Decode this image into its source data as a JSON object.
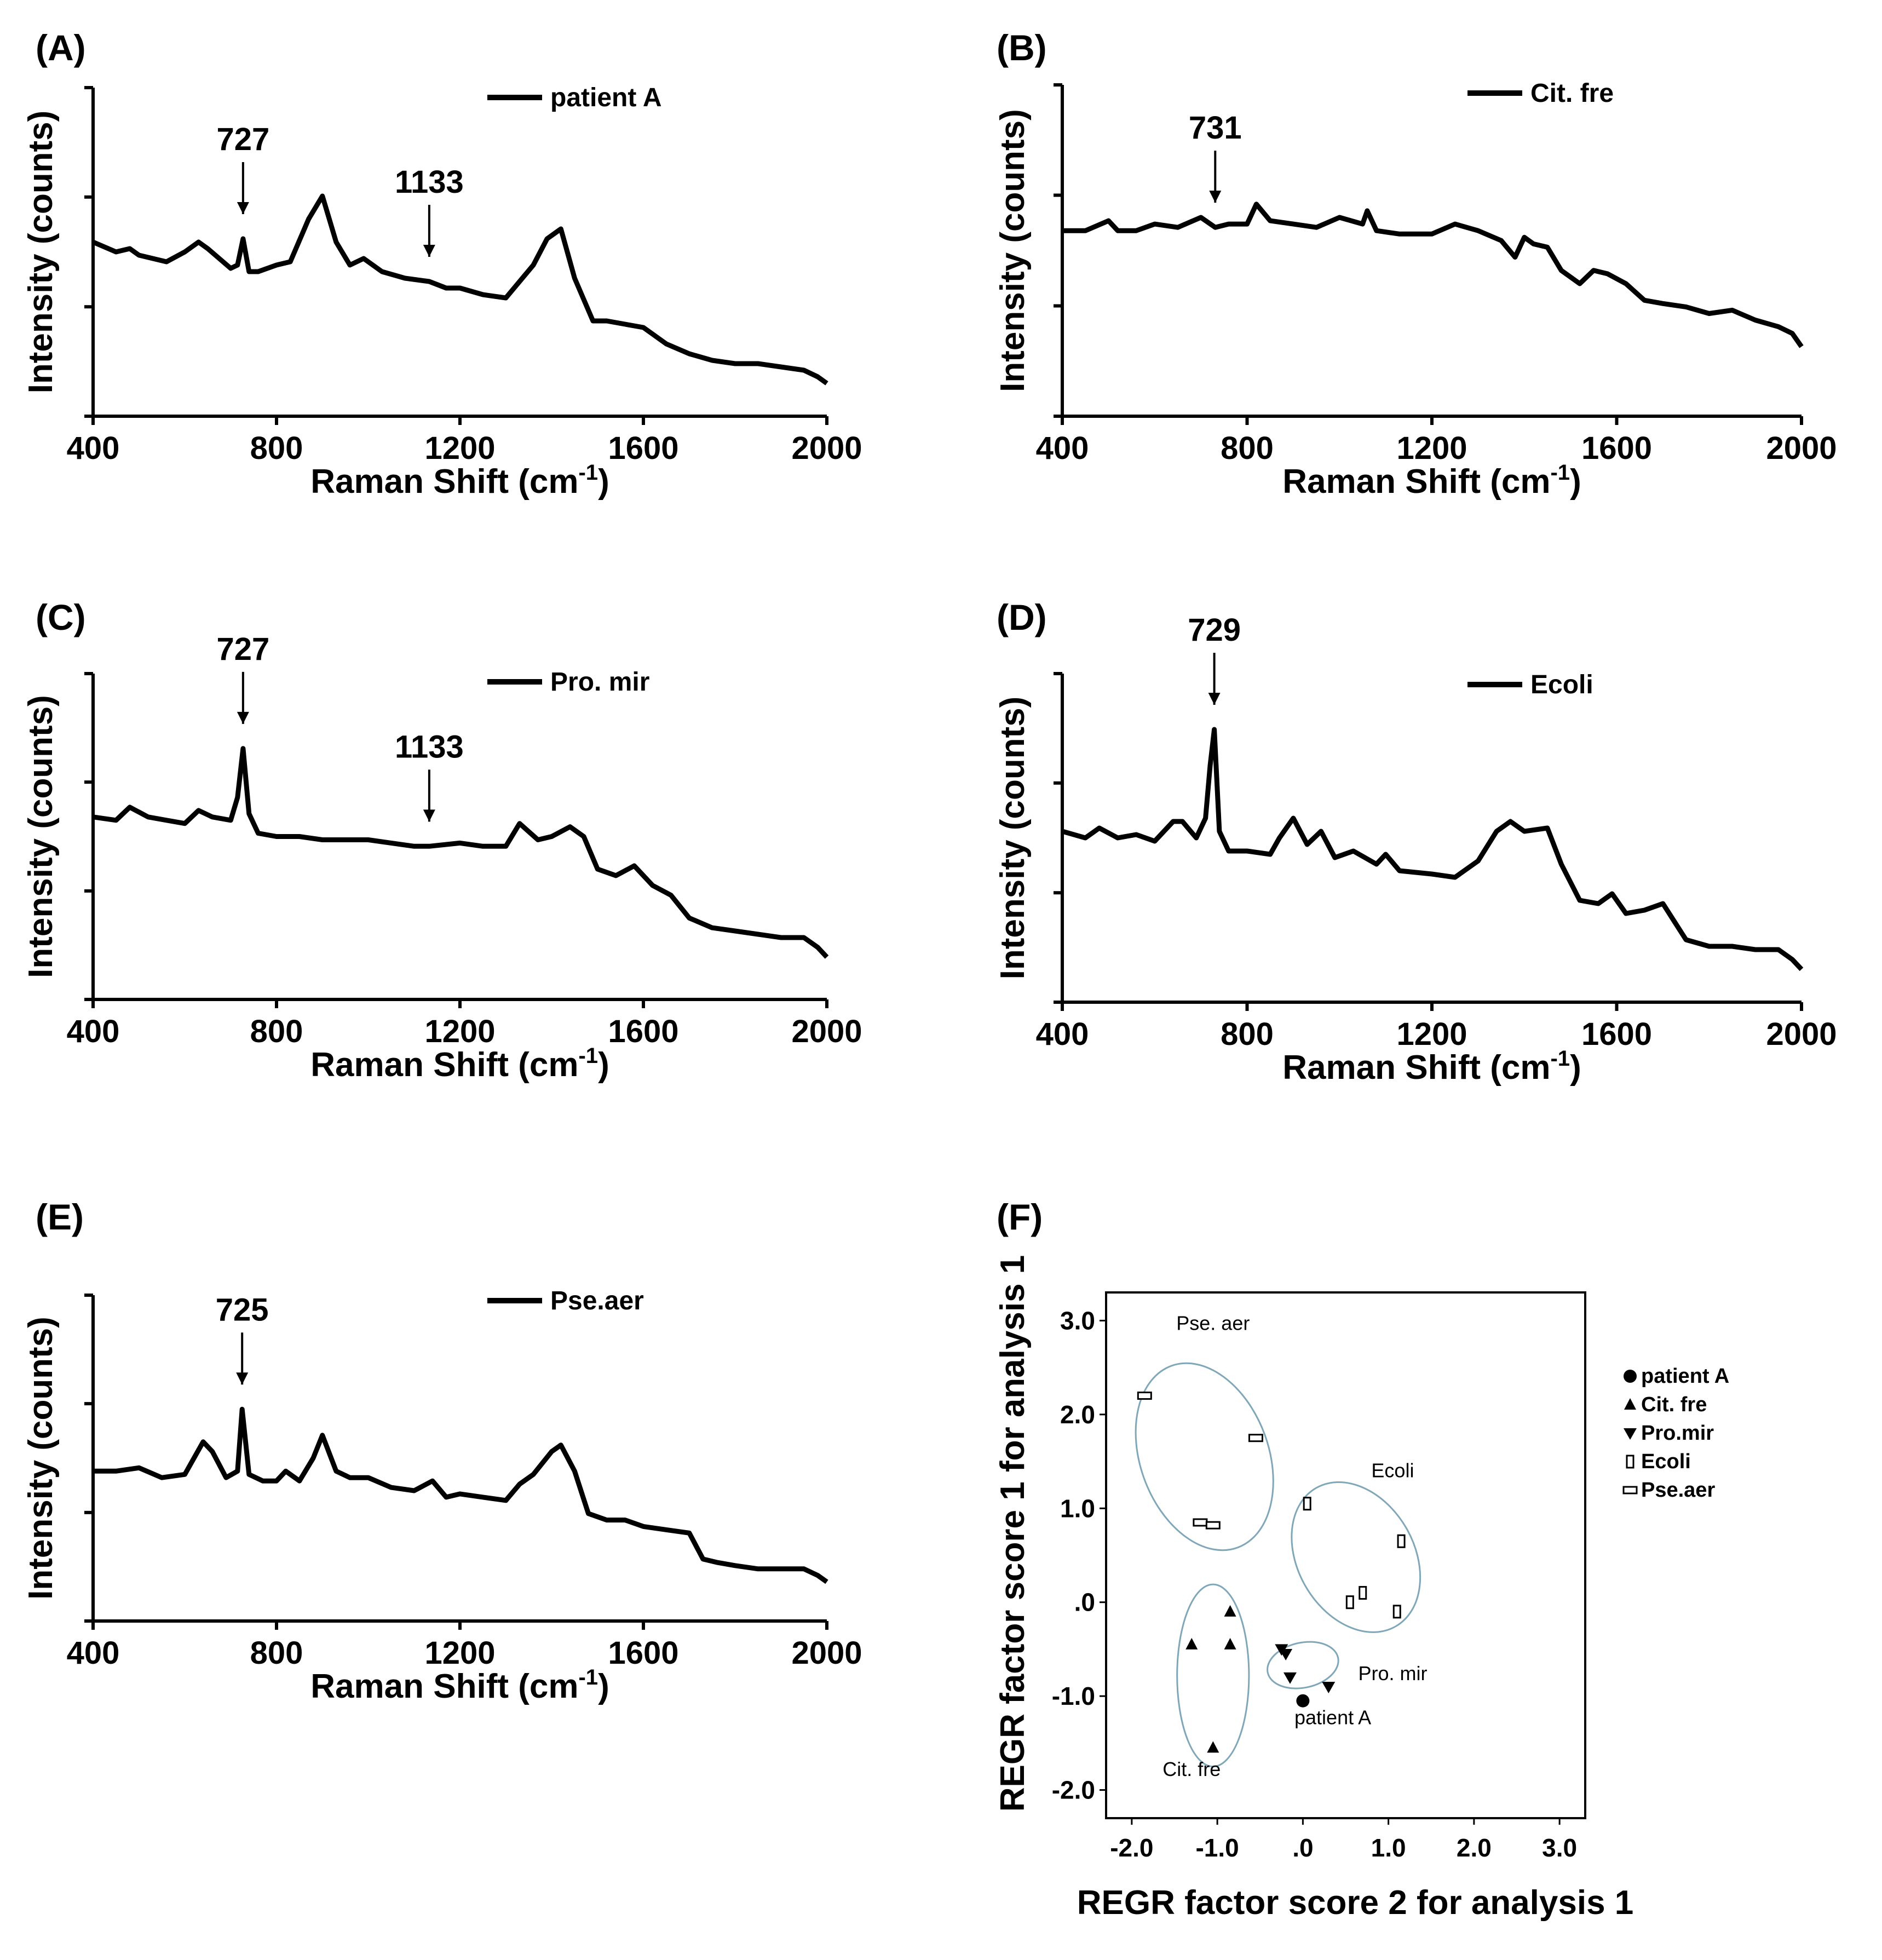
{
  "chart_data": [
    {
      "panel": "(A)",
      "type": "line",
      "legend": "patient A",
      "xlabel": "Raman Shift (cm-1)",
      "xlabel_main": "Raman Shift (cm",
      "xlabel_sup": "-1",
      "xlabel_close": ")",
      "ylabel": "Intensity (counts)",
      "xlim": [
        400,
        2000
      ],
      "ylim": [
        0,
        1
      ],
      "yticks": [
        0,
        0.333,
        0.667,
        1
      ],
      "xticks": [
        400,
        800,
        1200,
        1600,
        2000
      ],
      "xtick_labels": [
        "400",
        "800",
        "1200",
        "1600",
        "2000"
      ],
      "annotations": [
        {
          "x": 727,
          "label": "727"
        },
        {
          "x": 1133,
          "label": "1133"
        }
      ],
      "series": [
        {
          "name": "patient A",
          "x": [
            400,
            450,
            480,
            500,
            560,
            600,
            630,
            650,
            700,
            715,
            727,
            740,
            760,
            800,
            830,
            870,
            900,
            930,
            960,
            990,
            1030,
            1080,
            1133,
            1170,
            1200,
            1250,
            1300,
            1330,
            1360,
            1390,
            1420,
            1450,
            1490,
            1520,
            1560,
            1600,
            1650,
            1700,
            1750,
            1800,
            1850,
            1900,
            1950,
            1980,
            2000
          ],
          "y": [
            0.53,
            0.5,
            0.51,
            0.49,
            0.47,
            0.5,
            0.53,
            0.51,
            0.45,
            0.46,
            0.54,
            0.44,
            0.44,
            0.46,
            0.47,
            0.6,
            0.67,
            0.53,
            0.46,
            0.48,
            0.44,
            0.42,
            0.41,
            0.39,
            0.39,
            0.37,
            0.36,
            0.41,
            0.46,
            0.54,
            0.57,
            0.42,
            0.29,
            0.29,
            0.28,
            0.27,
            0.22,
            0.19,
            0.17,
            0.16,
            0.16,
            0.15,
            0.14,
            0.12,
            0.1
          ]
        }
      ]
    },
    {
      "panel": "(B)",
      "type": "line",
      "legend": "Cit. fre",
      "xlabel": "Raman Shift (cm-1)",
      "xlabel_main": "Raman Shift (cm",
      "xlabel_sup": "-1",
      "xlabel_close": ")",
      "ylabel": "Intensity (counts)",
      "xlim": [
        400,
        2000
      ],
      "ylim": [
        0,
        1
      ],
      "yticks": [
        0,
        0.333,
        0.667,
        1
      ],
      "xticks": [
        400,
        800,
        1200,
        1600,
        2000
      ],
      "xtick_labels": [
        "400",
        "800",
        "1200",
        "1600",
        "2000"
      ],
      "annotations": [
        {
          "x": 731,
          "label": "731"
        }
      ],
      "series": [
        {
          "name": "Cit. fre",
          "x": [
            400,
            450,
            500,
            520,
            560,
            600,
            650,
            700,
            731,
            760,
            800,
            820,
            850,
            900,
            950,
            1000,
            1050,
            1060,
            1080,
            1130,
            1200,
            1250,
            1300,
            1350,
            1380,
            1400,
            1420,
            1450,
            1480,
            1520,
            1550,
            1580,
            1620,
            1660,
            1700,
            1750,
            1800,
            1850,
            1900,
            1950,
            1980,
            2000
          ],
          "y": [
            0.56,
            0.56,
            0.59,
            0.56,
            0.56,
            0.58,
            0.57,
            0.6,
            0.57,
            0.58,
            0.58,
            0.64,
            0.59,
            0.58,
            0.57,
            0.6,
            0.58,
            0.62,
            0.56,
            0.55,
            0.55,
            0.58,
            0.56,
            0.53,
            0.48,
            0.54,
            0.52,
            0.51,
            0.44,
            0.4,
            0.44,
            0.43,
            0.4,
            0.35,
            0.34,
            0.33,
            0.31,
            0.32,
            0.29,
            0.27,
            0.25,
            0.21
          ]
        }
      ]
    },
    {
      "panel": "(C)",
      "type": "line",
      "legend": "Pro. mir",
      "xlabel": "Raman Shift (cm-1)",
      "xlabel_main": "Raman Shift (cm",
      "xlabel_sup": "-1",
      "xlabel_close": ")",
      "ylabel": "Intensity (counts)",
      "xlim": [
        400,
        2000
      ],
      "ylim": [
        0,
        1
      ],
      "yticks": [
        0,
        0.333,
        0.667,
        1
      ],
      "xticks": [
        400,
        800,
        1200,
        1600,
        2000
      ],
      "xtick_labels": [
        "400",
        "800",
        "1200",
        "1600",
        "2000"
      ],
      "annotations": [
        {
          "x": 727,
          "label": "727"
        },
        {
          "x": 1133,
          "label": "1133"
        }
      ],
      "series": [
        {
          "name": "Pro. mir",
          "x": [
            400,
            450,
            480,
            520,
            560,
            600,
            630,
            660,
            700,
            715,
            727,
            740,
            760,
            800,
            850,
            900,
            950,
            1000,
            1050,
            1100,
            1133,
            1200,
            1250,
            1300,
            1330,
            1370,
            1400,
            1440,
            1470,
            1500,
            1540,
            1580,
            1620,
            1660,
            1700,
            1750,
            1800,
            1850,
            1900,
            1950,
            1980,
            2000
          ],
          "y": [
            0.56,
            0.55,
            0.59,
            0.56,
            0.55,
            0.54,
            0.58,
            0.56,
            0.55,
            0.62,
            0.77,
            0.57,
            0.51,
            0.5,
            0.5,
            0.49,
            0.49,
            0.49,
            0.48,
            0.47,
            0.47,
            0.48,
            0.47,
            0.47,
            0.54,
            0.49,
            0.5,
            0.53,
            0.5,
            0.4,
            0.38,
            0.41,
            0.35,
            0.32,
            0.25,
            0.22,
            0.21,
            0.2,
            0.19,
            0.19,
            0.16,
            0.13
          ]
        }
      ]
    },
    {
      "panel": "(D)",
      "type": "line",
      "legend": "Ecoli",
      "xlabel": "Raman Shift (cm-1)",
      "xlabel_main": "Raman Shift (cm",
      "xlabel_sup": "-1",
      "xlabel_close": ")",
      "ylabel": "Intensity (counts)",
      "xlim": [
        400,
        2000
      ],
      "ylim": [
        0,
        1
      ],
      "yticks": [
        0,
        0.333,
        0.667,
        1
      ],
      "xticks": [
        400,
        800,
        1200,
        1600,
        2000
      ],
      "xtick_labels": [
        "400",
        "800",
        "1200",
        "1600",
        "2000"
      ],
      "annotations": [
        {
          "x": 729,
          "label": "729"
        }
      ],
      "series": [
        {
          "name": "Ecoli",
          "x": [
            400,
            450,
            480,
            520,
            560,
            600,
            640,
            660,
            690,
            710,
            720,
            729,
            740,
            760,
            800,
            850,
            870,
            900,
            930,
            960,
            990,
            1030,
            1080,
            1100,
            1130,
            1200,
            1250,
            1300,
            1340,
            1370,
            1400,
            1450,
            1480,
            1520,
            1560,
            1590,
            1620,
            1660,
            1700,
            1750,
            1800,
            1850,
            1900,
            1950,
            1980,
            2000
          ],
          "y": [
            0.52,
            0.5,
            0.53,
            0.5,
            0.51,
            0.49,
            0.55,
            0.55,
            0.5,
            0.56,
            0.72,
            0.83,
            0.52,
            0.46,
            0.46,
            0.45,
            0.5,
            0.56,
            0.48,
            0.52,
            0.44,
            0.46,
            0.42,
            0.45,
            0.4,
            0.39,
            0.38,
            0.43,
            0.52,
            0.55,
            0.52,
            0.53,
            0.42,
            0.31,
            0.3,
            0.33,
            0.27,
            0.28,
            0.3,
            0.19,
            0.17,
            0.17,
            0.16,
            0.16,
            0.13,
            0.1
          ]
        }
      ]
    },
    {
      "panel": "(E)",
      "type": "line",
      "legend": "Pse.aer",
      "xlabel": "Raman Shift (cm-1)",
      "xlabel_main": "Raman Shift (cm",
      "xlabel_sup": "-1",
      "xlabel_close": ")",
      "ylabel": "Intensity (counts)",
      "xlim": [
        400,
        2000
      ],
      "ylim": [
        0,
        1
      ],
      "yticks": [
        0,
        0.333,
        0.667,
        1
      ],
      "xticks": [
        400,
        800,
        1200,
        1600,
        2000
      ],
      "xtick_labels": [
        "400",
        "800",
        "1200",
        "1600",
        "2000"
      ],
      "annotations": [
        {
          "x": 725,
          "label": "725"
        }
      ],
      "series": [
        {
          "name": "Pse.aer",
          "x": [
            400,
            450,
            500,
            550,
            600,
            640,
            660,
            690,
            715,
            725,
            740,
            770,
            800,
            820,
            850,
            880,
            900,
            930,
            960,
            1000,
            1050,
            1100,
            1140,
            1170,
            1200,
            1250,
            1300,
            1330,
            1360,
            1400,
            1420,
            1450,
            1480,
            1520,
            1560,
            1600,
            1650,
            1700,
            1730,
            1760,
            1800,
            1850,
            1900,
            1950,
            1980,
            2000
          ],
          "y": [
            0.46,
            0.46,
            0.47,
            0.44,
            0.45,
            0.55,
            0.52,
            0.44,
            0.46,
            0.65,
            0.45,
            0.43,
            0.43,
            0.46,
            0.43,
            0.5,
            0.57,
            0.46,
            0.44,
            0.44,
            0.41,
            0.4,
            0.43,
            0.38,
            0.39,
            0.38,
            0.37,
            0.42,
            0.45,
            0.52,
            0.54,
            0.46,
            0.33,
            0.31,
            0.31,
            0.29,
            0.28,
            0.27,
            0.19,
            0.18,
            0.17,
            0.16,
            0.16,
            0.16,
            0.14,
            0.12
          ]
        }
      ]
    },
    {
      "panel": "(F)",
      "type": "scatter",
      "xlabel": "REGR factor score 2 for analysis 1",
      "ylabel": "REGR factor score 1 for analysis 1",
      "xlim": [
        -2.3,
        3.3
      ],
      "ylim": [
        -2.3,
        3.3
      ],
      "xticks": [
        -2.0,
        -1.0,
        0.0,
        1.0,
        2.0,
        3.0
      ],
      "xtick_labels": [
        "-2.0",
        "-1.0",
        ".0",
        "1.0",
        "2.0",
        "3.0"
      ],
      "yticks": [
        -2.0,
        -1.0,
        0.0,
        1.0,
        2.0,
        3.0
      ],
      "ytick_labels": [
        "-2.0",
        "-1.0",
        ".0",
        "1.0",
        "2.0",
        "3.0"
      ],
      "series": [
        {
          "name": "patient A",
          "marker": "circle",
          "points": [
            [
              0.0,
              -1.05
            ]
          ]
        },
        {
          "name": "Cit. fre",
          "marker": "triangle-up",
          "points": [
            [
              -0.85,
              -0.1
            ],
            [
              -1.3,
              -0.45
            ],
            [
              -0.85,
              -0.45
            ],
            [
              -1.05,
              -1.55
            ]
          ]
        },
        {
          "name": "Pro.mir",
          "marker": "triangle-down",
          "points": [
            [
              -0.25,
              -0.5
            ],
            [
              -0.2,
              -0.55
            ],
            [
              -0.15,
              -0.8
            ],
            [
              0.3,
              -0.9
            ]
          ]
        },
        {
          "name": "Ecoli",
          "marker": "tall-rect",
          "points": [
            [
              0.05,
              1.05
            ],
            [
              1.15,
              0.65
            ],
            [
              0.7,
              0.1
            ],
            [
              0.55,
              0.0
            ],
            [
              1.1,
              -0.1
            ]
          ]
        },
        {
          "name": "Pse.aer",
          "marker": "wide-rect",
          "points": [
            [
              -1.85,
              2.2
            ],
            [
              -0.55,
              1.75
            ],
            [
              -1.2,
              0.85
            ],
            [
              -1.05,
              0.82
            ]
          ]
        }
      ],
      "ellipses": [
        {
          "name": "Pse. aer",
          "cx": -1.15,
          "cy": 1.55,
          "rx": 0.75,
          "ry": 1.03,
          "angle_deg": -20
        },
        {
          "name": "Ecoli",
          "cx": 0.62,
          "cy": 0.48,
          "rx": 0.68,
          "ry": 0.85,
          "angle_deg": -30
        },
        {
          "name": "Cit. fre",
          "cx": -1.05,
          "cy": -0.78,
          "rx": 0.42,
          "ry": 0.97,
          "angle_deg": 0
        },
        {
          "name": "Pro. mir",
          "cx": 0.0,
          "cy": -0.67,
          "rx": 0.42,
          "ry": 0.24,
          "angle_deg": -12
        }
      ],
      "cluster_labels": [
        {
          "text": "Pse. aer",
          "x": -1.05,
          "y": 2.9
        },
        {
          "text": "Ecoli",
          "x": 1.05,
          "y": 1.33
        },
        {
          "text": "Pro. mir",
          "x": 1.05,
          "y": -0.83
        },
        {
          "text": "patient A",
          "x": 0.35,
          "y": -1.3
        },
        {
          "text": "Cit. fre",
          "x": -1.3,
          "y": -1.85
        }
      ],
      "legend": [
        "patient A",
        "Cit. fre",
        "Pro.mir",
        "Ecoli",
        "Pse.aer"
      ]
    }
  ]
}
